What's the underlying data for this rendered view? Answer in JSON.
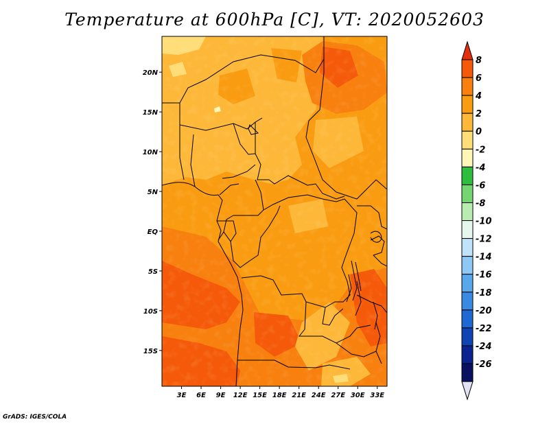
{
  "title": "Temperature at 600hPa [C], VT: 2020052603",
  "credit": "GrADS: IGES/COLA",
  "map": {
    "projection": "latlon",
    "lon_range": [
      0,
      34.5
    ],
    "lat_range": [
      -19.5,
      24.5
    ],
    "lat_ticks": [
      {
        "value": 20,
        "label": "20N"
      },
      {
        "value": 15,
        "label": "15N"
      },
      {
        "value": 10,
        "label": "10N"
      },
      {
        "value": 5,
        "label": "5N"
      },
      {
        "value": 0,
        "label": "EQ"
      },
      {
        "value": -5,
        "label": "5S"
      },
      {
        "value": -10,
        "label": "10S"
      },
      {
        "value": -15,
        "label": "15S"
      }
    ],
    "lon_ticks": [
      {
        "value": 3,
        "label": "3E"
      },
      {
        "value": 6,
        "label": "6E"
      },
      {
        "value": 9,
        "label": "9E"
      },
      {
        "value": 12,
        "label": "12E"
      },
      {
        "value": 15,
        "label": "15E"
      },
      {
        "value": 18,
        "label": "18E"
      },
      {
        "value": 21,
        "label": "21E"
      },
      {
        "value": 24,
        "label": "24E"
      },
      {
        "value": 27,
        "label": "27E"
      },
      {
        "value": 30,
        "label": "30E"
      },
      {
        "value": 33,
        "label": "33E"
      }
    ]
  },
  "colorbar": {
    "labels": [
      "8",
      "6",
      "4",
      "2",
      "0",
      "-2",
      "-4",
      "-6",
      "-8",
      "-10",
      "-12",
      "-14",
      "-16",
      "-18",
      "-20",
      "-22",
      "-24",
      "-26"
    ],
    "colors": [
      "#e32e0e",
      "#f55a0a",
      "#f8800f",
      "#fa9c12",
      "#fdb83a",
      "#ffdd78",
      "#fff6b8",
      "#2ebd3c",
      "#74d670",
      "#b8ecb0",
      "#e6f8ee",
      "#bfe3fa",
      "#8ec8f4",
      "#5aa8ec",
      "#3a8ae4",
      "#1e68d4",
      "#0f44b4",
      "#0a2390",
      "#081260",
      "#e2e2f4"
    ]
  }
}
